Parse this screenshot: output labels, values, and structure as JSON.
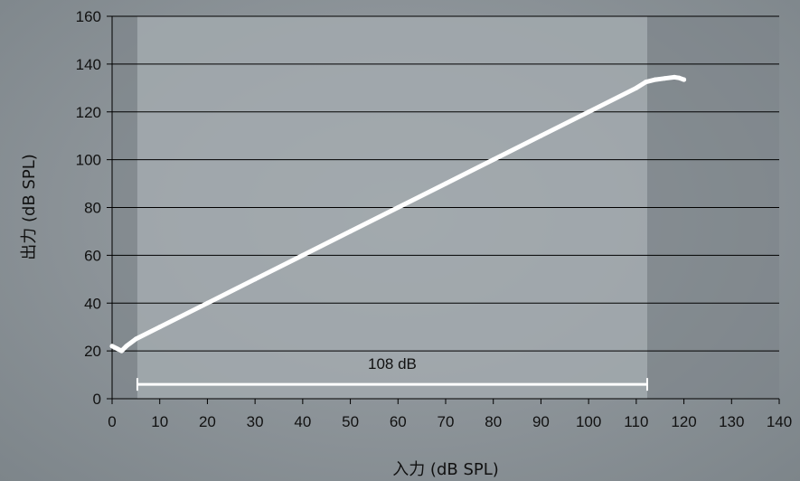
{
  "chart_data": {
    "type": "line",
    "xlabel": "入力 (dB SPL)",
    "ylabel": "出力 (dB SPL)",
    "xlim": [
      0,
      140
    ],
    "ylim": [
      0,
      160
    ],
    "x_ticks": [
      "0",
      "10",
      "20",
      "30",
      "40",
      "50",
      "60",
      "70",
      "80",
      "90",
      "100",
      "110",
      "120",
      "130",
      "140"
    ],
    "y_ticks": [
      "0",
      "20",
      "40",
      "60",
      "80",
      "100",
      "120",
      "140",
      "160"
    ],
    "grid": "horizontal",
    "highlight_range": [
      5.3,
      112.3
    ],
    "series": [
      {
        "color": "#ffffff",
        "x": [
          0,
          1,
          2,
          3,
          5,
          10,
          20,
          30,
          40,
          50,
          60,
          70,
          80,
          90,
          100,
          110,
          112,
          114,
          116,
          118,
          119,
          120
        ],
        "y": [
          22,
          21,
          20,
          22,
          25,
          30,
          40,
          50,
          60,
          70,
          80,
          90,
          100,
          110,
          120,
          130,
          132.5,
          133.5,
          134,
          134.5,
          134.2,
          133.5
        ]
      }
    ],
    "annotations": [
      {
        "text": "108 dB",
        "x_start": 5.3,
        "x_end": 112.3,
        "y": 6
      }
    ]
  }
}
